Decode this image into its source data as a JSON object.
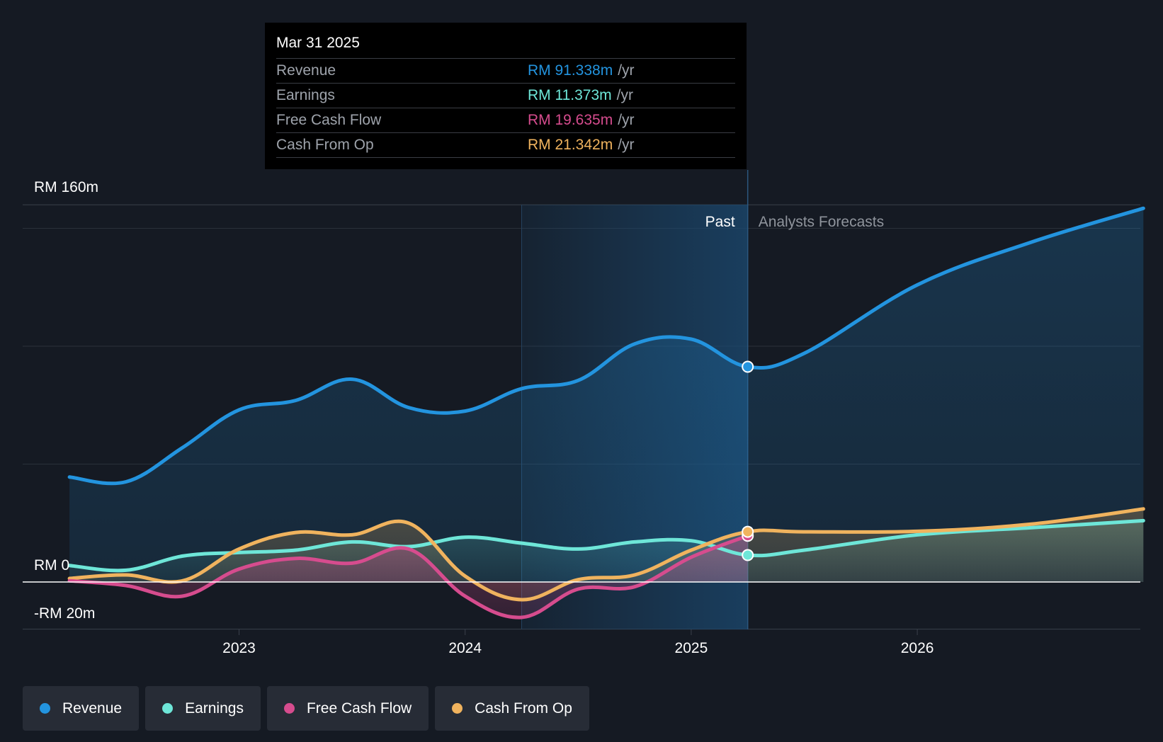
{
  "tooltip": {
    "date": "Mar 31 2025",
    "rows": [
      {
        "label": "Revenue",
        "value": "RM 91.338m",
        "unit": "/yr",
        "color": "#2394df"
      },
      {
        "label": "Earnings",
        "value": "RM 11.373m",
        "unit": "/yr",
        "color": "#6ee6d8"
      },
      {
        "label": "Free Cash Flow",
        "value": "RM 19.635m",
        "unit": "/yr",
        "color": "#d64c8e"
      },
      {
        "label": "Cash From Op",
        "value": "RM 21.342m",
        "unit": "/yr",
        "color": "#f0b35e"
      }
    ]
  },
  "legend": [
    {
      "label": "Revenue",
      "color": "#2394df"
    },
    {
      "label": "Earnings",
      "color": "#6ee6d8"
    },
    {
      "label": "Free Cash Flow",
      "color": "#d64c8e"
    },
    {
      "label": "Cash From Op",
      "color": "#f0b35e"
    }
  ],
  "chart_data": {
    "type": "line",
    "title": "",
    "y_labels": [
      "RM 160m",
      "RM 0",
      "-RM 20m"
    ],
    "ylim": [
      -20,
      160
    ],
    "x_ticks": [
      {
        "label": "2023",
        "x": 2023.0
      },
      {
        "label": "2024",
        "x": 2024.0
      },
      {
        "label": "2025",
        "x": 2025.0
      },
      {
        "label": "2026",
        "x": 2026.0
      }
    ],
    "xlim": [
      2022.2,
      2027.0
    ],
    "past_label": "Past",
    "forecast_label": "Analysts Forecasts",
    "past_end": 2025.25,
    "shade_start": 2024.25,
    "series": [
      {
        "name": "Revenue",
        "color": "#2394df",
        "forecast": true,
        "points": [
          [
            2022.25,
            44.5
          ],
          [
            2022.5,
            42.5
          ],
          [
            2022.75,
            57
          ],
          [
            2023.0,
            73
          ],
          [
            2023.25,
            77
          ],
          [
            2023.5,
            86
          ],
          [
            2023.75,
            74
          ],
          [
            2024.0,
            72.5
          ],
          [
            2024.25,
            82
          ],
          [
            2024.5,
            85.5
          ],
          [
            2024.75,
            101
          ],
          [
            2025.0,
            103
          ],
          [
            2025.25,
            91.3
          ],
          [
            2025.5,
            97
          ],
          [
            2026.0,
            126
          ],
          [
            2026.5,
            144
          ],
          [
            2027.0,
            158.5
          ]
        ]
      },
      {
        "name": "Earnings",
        "color": "#6ee6d8",
        "forecast": true,
        "points": [
          [
            2022.25,
            7
          ],
          [
            2022.5,
            5
          ],
          [
            2022.75,
            11
          ],
          [
            2023.0,
            12.5
          ],
          [
            2023.25,
            13.5
          ],
          [
            2023.5,
            17
          ],
          [
            2023.75,
            15
          ],
          [
            2024.0,
            19
          ],
          [
            2024.25,
            16.5
          ],
          [
            2024.5,
            14
          ],
          [
            2024.75,
            17
          ],
          [
            2025.0,
            17.5
          ],
          [
            2025.25,
            11.4
          ],
          [
            2025.5,
            13.5
          ],
          [
            2026.0,
            20
          ],
          [
            2026.5,
            23
          ],
          [
            2027.0,
            26
          ]
        ]
      },
      {
        "name": "Free Cash Flow",
        "color": "#d64c8e",
        "forecast": false,
        "points": [
          [
            2022.25,
            0.5
          ],
          [
            2022.5,
            -1.5
          ],
          [
            2022.75,
            -6
          ],
          [
            2023.0,
            5.5
          ],
          [
            2023.25,
            10
          ],
          [
            2023.5,
            8
          ],
          [
            2023.75,
            14
          ],
          [
            2024.0,
            -6
          ],
          [
            2024.25,
            -15
          ],
          [
            2024.5,
            -3
          ],
          [
            2024.75,
            -2
          ],
          [
            2025.0,
            10.5
          ],
          [
            2025.25,
            19.6
          ]
        ]
      },
      {
        "name": "Cash From Op",
        "color": "#f0b35e",
        "forecast": true,
        "points": [
          [
            2022.25,
            1.5
          ],
          [
            2022.5,
            3
          ],
          [
            2022.75,
            0.5
          ],
          [
            2023.0,
            14
          ],
          [
            2023.25,
            21
          ],
          [
            2023.5,
            20
          ],
          [
            2023.75,
            25
          ],
          [
            2024.0,
            2.5
          ],
          [
            2024.25,
            -7.5
          ],
          [
            2024.5,
            1
          ],
          [
            2024.75,
            3
          ],
          [
            2025.0,
            13.5
          ],
          [
            2025.25,
            21.3
          ],
          [
            2025.5,
            21.3
          ],
          [
            2026.0,
            21.5
          ],
          [
            2026.5,
            24.5
          ],
          [
            2027.0,
            31
          ]
        ]
      }
    ]
  }
}
